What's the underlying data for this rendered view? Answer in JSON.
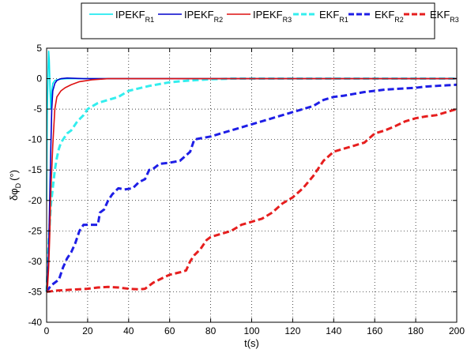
{
  "chart_data": {
    "type": "line",
    "xlabel": "t(s)",
    "ylabel": "δφD (°)",
    "ylabel_parts": {
      "symbol": "δφ",
      "subscript": "D",
      "unit": "(°)"
    },
    "xlim": [
      0,
      200
    ],
    "ylim": [
      -40,
      5
    ],
    "xticks": [
      0,
      20,
      40,
      60,
      80,
      100,
      120,
      140,
      160,
      180,
      200
    ],
    "yticks": [
      5,
      0,
      -5,
      -10,
      -15,
      -20,
      -25,
      -30,
      -35,
      -40
    ],
    "grid": true,
    "legend_position": "top",
    "series": [
      {
        "name": "IPEKFR1",
        "label_main": "IPEKF",
        "label_sub": "R1",
        "color": "#00e5ee",
        "style": "solid",
        "x": [
          0,
          0.3,
          0.7,
          1.0,
          1.3,
          1.7,
          2.0,
          2.5,
          3.0,
          4.0,
          6.0,
          10,
          200
        ],
        "y": [
          -20,
          -6,
          1,
          4.5,
          3,
          -2,
          -5,
          -2,
          -0.8,
          -0.3,
          -0.1,
          0,
          0
        ]
      },
      {
        "name": "IPEKFR2",
        "label_main": "IPEKF",
        "label_sub": "R2",
        "color": "#0000cc",
        "style": "solid",
        "x": [
          0,
          0.5,
          1.0,
          1.5,
          2.0,
          2.5,
          3.0,
          4.0,
          5.0,
          7.0,
          10,
          18,
          200
        ],
        "y": [
          -34.5,
          -33,
          -28,
          -20,
          -12,
          -5,
          -2,
          -0.8,
          -0.3,
          0,
          0.1,
          0,
          0
        ]
      },
      {
        "name": "IPEKFR3",
        "label_main": "IPEKF",
        "label_sub": "R3",
        "color": "#dd1111",
        "style": "solid",
        "x": [
          0,
          0.5,
          1.0,
          1.5,
          2.0,
          3.0,
          4.0,
          5.0,
          6.0,
          7.0,
          9.0,
          12,
          16,
          22,
          30,
          200
        ],
        "y": [
          -35,
          -34,
          -31,
          -26,
          -19,
          -11,
          -5,
          -3,
          -2.5,
          -2,
          -1.5,
          -1,
          -0.5,
          -0.2,
          0,
          0
        ]
      },
      {
        "name": "EKFR1",
        "label_main": "EKF",
        "label_sub": "R1",
        "color": "#33eeee",
        "style": "dashed",
        "x": [
          0,
          1,
          2,
          3,
          4,
          5,
          6,
          7,
          8,
          10,
          12,
          15,
          18,
          20,
          25,
          30,
          35,
          40,
          50,
          60,
          70,
          80,
          90,
          100,
          200
        ],
        "y": [
          -35,
          -27,
          -21,
          -18,
          -15,
          -13,
          -11.5,
          -10.5,
          -10,
          -9,
          -8.5,
          -7,
          -6,
          -5,
          -4,
          -3.5,
          -3,
          -2,
          -1.2,
          -0.6,
          -0.3,
          -0.1,
          0,
          0,
          0
        ]
      },
      {
        "name": "EKFR2",
        "label_main": "EKF",
        "label_sub": "R2",
        "color": "#1e1ee6",
        "style": "dashed",
        "x": [
          0,
          2,
          4,
          6,
          8,
          10,
          12,
          14,
          16,
          18,
          20,
          25,
          26,
          28,
          30,
          32,
          35,
          38,
          42,
          45,
          48,
          50,
          52,
          55,
          60,
          65,
          70,
          72,
          75,
          80,
          85,
          90,
          95,
          100,
          105,
          110,
          115,
          120,
          125,
          130,
          135,
          140,
          145,
          150,
          155,
          160,
          165,
          170,
          175,
          180,
          185,
          190,
          195,
          200
        ],
        "y": [
          -35,
          -34,
          -33.5,
          -33,
          -31,
          -29.5,
          -28.5,
          -27,
          -25,
          -24,
          -24,
          -24,
          -22,
          -21.5,
          -20,
          -19,
          -18,
          -18.2,
          -18,
          -17,
          -16.5,
          -15,
          -14.8,
          -14,
          -13.8,
          -13.5,
          -12,
          -10,
          -9.8,
          -9.5,
          -9,
          -8.5,
          -8,
          -7.5,
          -7,
          -6.5,
          -6,
          -5.5,
          -5,
          -4.5,
          -3.5,
          -3,
          -2.8,
          -2.5,
          -2.2,
          -2,
          -1.8,
          -1.7,
          -1.6,
          -1.5,
          -1.3,
          -1.2,
          -1.1,
          -1
        ]
      },
      {
        "name": "EKFR3",
        "label_main": "EKF",
        "label_sub": "R3",
        "color": "#e61e1e",
        "style": "dashed",
        "x": [
          0,
          5,
          10,
          15,
          20,
          25,
          30,
          35,
          40,
          45,
          48,
          50,
          52,
          55,
          58,
          60,
          65,
          68,
          70,
          72,
          75,
          78,
          80,
          85,
          90,
          95,
          100,
          105,
          110,
          115,
          120,
          125,
          130,
          135,
          140,
          145,
          150,
          155,
          160,
          165,
          170,
          175,
          180,
          185,
          190,
          195,
          200
        ],
        "y": [
          -35,
          -34.8,
          -34.7,
          -34.6,
          -34.5,
          -34.3,
          -34.2,
          -34.3,
          -34.5,
          -34.6,
          -34.5,
          -34,
          -33.5,
          -33,
          -32.5,
          -32.2,
          -31.8,
          -31.5,
          -30,
          -29,
          -28,
          -26.5,
          -26,
          -25.5,
          -25,
          -24,
          -23.5,
          -23,
          -22,
          -20.5,
          -19.5,
          -18,
          -16,
          -13.5,
          -12,
          -11.5,
          -11,
          -10.5,
          -9,
          -8.5,
          -7.8,
          -7,
          -6.5,
          -6.2,
          -6,
          -5.5,
          -5
        ]
      }
    ]
  }
}
